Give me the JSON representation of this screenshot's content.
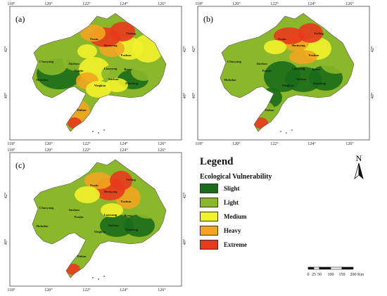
{
  "panels": [
    {
      "label": "(a)"
    },
    {
      "label": "(b)"
    },
    {
      "label": "(c)"
    }
  ],
  "axes": {
    "lon_ticks": [
      "118°",
      "120°",
      "122°",
      "124°",
      "126°"
    ],
    "lat_ticks": [
      "42°",
      "40°"
    ]
  },
  "place_names": [
    "Tieling",
    "Fuxin",
    "Shenyang",
    "Fushun",
    "Chaoyang",
    "Jinzhou",
    "Liaoyang",
    "Benxi",
    "Panjin",
    "Anshan",
    "Huludao",
    "Yingkou",
    "Dandong",
    "Dalian"
  ],
  "legend": {
    "title": "Legend",
    "subtitle": "Ecological Vulnerability",
    "classes": [
      {
        "label": "Slight",
        "color": "#1a6b1a"
      },
      {
        "label": "Light",
        "color": "#8ab82a"
      },
      {
        "label": "Medium",
        "color": "#f2f22a"
      },
      {
        "label": "Heavy",
        "color": "#f2a51f"
      },
      {
        "label": "Extreme",
        "color": "#e83a1c"
      }
    ]
  },
  "north_arrow": {
    "label": "N"
  },
  "scale_bar": {
    "ticks": [
      "0",
      "25",
      "50",
      "100",
      "150",
      "200"
    ],
    "unit": "Km"
  }
}
